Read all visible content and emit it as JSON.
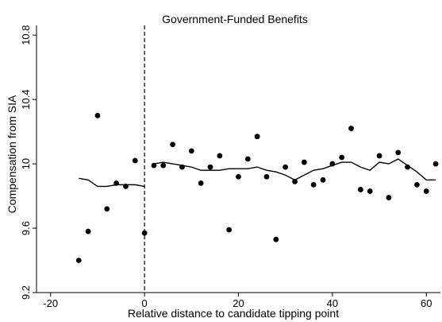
{
  "chart_data": {
    "type": "scatter",
    "title": "Government-Funded Benefits",
    "xlabel": "Relative distance to candidate tipping point",
    "ylabel": "Compensation from SIA",
    "xlim": [
      -23,
      63
    ],
    "ylim": [
      9.2,
      10.86
    ],
    "x_ticks": [
      -20,
      0,
      20,
      40,
      60
    ],
    "x_tick_labels": [
      "-20",
      "0",
      "20",
      "40",
      "60"
    ],
    "y_ticks": [
      9.2,
      9.6,
      10,
      10.4,
      10.8
    ],
    "y_tick_labels": [
      "9.2",
      "9.6",
      "10",
      "10.4",
      "10.8"
    ],
    "cutoff_x": 0,
    "grid": false,
    "series": [
      {
        "type": "scatter",
        "x": [
          -14,
          -12,
          -10,
          -8,
          -6,
          -4,
          -2,
          0,
          2,
          4,
          6,
          8,
          10,
          12,
          14,
          16,
          18,
          20,
          22,
          24,
          26,
          28,
          30,
          32,
          34,
          36,
          38,
          40,
          42,
          44,
          46,
          48,
          50,
          52,
          54,
          56,
          58,
          60,
          62
        ],
        "y": [
          9.4,
          9.58,
          10.3,
          9.72,
          9.88,
          9.86,
          10.02,
          9.57,
          9.99,
          9.99,
          10.12,
          9.98,
          10.08,
          9.88,
          9.98,
          10.05,
          9.59,
          9.92,
          10.03,
          10.17,
          9.92,
          9.53,
          9.98,
          9.89,
          10.01,
          9.87,
          9.9,
          10.0,
          10.04,
          10.22,
          9.84,
          9.83,
          10.05,
          9.79,
          10.07,
          9.98,
          9.87,
          9.83,
          10.0
        ]
      },
      {
        "type": "line",
        "x": [
          -14,
          -12,
          -10,
          -8,
          -6,
          -4,
          -2,
          0
        ],
        "y": [
          9.91,
          9.9,
          9.86,
          9.86,
          9.87,
          9.87,
          9.87,
          9.86
        ]
      },
      {
        "type": "line",
        "x": [
          2,
          4,
          6,
          8,
          10,
          12,
          14,
          16,
          18,
          20,
          22,
          24,
          26,
          28,
          30,
          32,
          34,
          36,
          38,
          40,
          42,
          44,
          46,
          48,
          50,
          52,
          54,
          56,
          58,
          60,
          62
        ],
        "y": [
          10.0,
          10.01,
          10.0,
          9.99,
          9.98,
          9.96,
          9.96,
          9.96,
          9.97,
          9.97,
          9.97,
          9.98,
          9.96,
          9.95,
          9.93,
          9.9,
          9.93,
          9.96,
          9.97,
          9.99,
          10.01,
          10.01,
          9.98,
          9.96,
          10.01,
          10.0,
          10.03,
          9.99,
          9.95,
          9.9,
          9.9
        ]
      }
    ]
  }
}
